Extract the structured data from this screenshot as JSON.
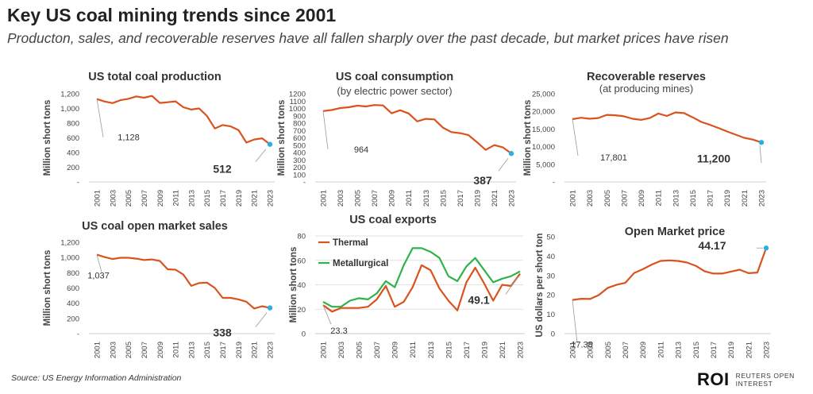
{
  "header": {
    "title": "Key US coal mining trends since 2001",
    "subtitle": "Producton, sales, and recoverable reserves have all fallen sharply over the past decade, but market prices have risen"
  },
  "footer": {
    "source": "Source: US Energy Information Administration",
    "logo_mark": "ROI",
    "logo_line1": "REUTERS OPEN",
    "logo_line2": "INTEREST"
  },
  "colors": {
    "line": "#d9531e",
    "line2": "#2db34a",
    "dot": "#2eaee0",
    "grid": "#d9d9d9"
  },
  "chart_data": [
    {
      "type": "line",
      "title": "US total coal production",
      "subtitle": "",
      "ylabel": "Million short tons",
      "ylim": [
        0,
        1200
      ],
      "yticks": [
        0,
        200,
        400,
        600,
        800,
        1000,
        1200
      ],
      "ytick_labels": [
        "-",
        "200",
        "400",
        "600",
        "800",
        "1,000",
        "1,200"
      ],
      "x": [
        2001,
        2002,
        2003,
        2004,
        2005,
        2006,
        2007,
        2008,
        2009,
        2010,
        2011,
        2012,
        2013,
        2014,
        2015,
        2016,
        2017,
        2018,
        2019,
        2020,
        2021,
        2022,
        2023
      ],
      "xtick_labels": [
        "2001",
        "2003",
        "2005",
        "2007",
        "2009",
        "2011",
        "2013",
        "2015",
        "2017",
        "2019",
        "2021",
        "2023"
      ],
      "series": [
        {
          "name": "Production",
          "values": [
            1128,
            1094,
            1072,
            1112,
            1131,
            1163,
            1146,
            1171,
            1075,
            1084,
            1096,
            1016,
            985,
            1000,
            897,
            728,
            774,
            756,
            706,
            535,
            577,
            594,
            512
          ]
        }
      ],
      "annotations": [
        {
          "text": "1,128",
          "x": 2001,
          "y": 1128,
          "bold": false
        },
        {
          "text": "512",
          "x": 2023,
          "y": 512,
          "bold": true
        }
      ]
    },
    {
      "type": "line",
      "title": "US coal consumption",
      "subtitle": "(by electric power sector)",
      "ylabel": "Million short tons",
      "ylim": [
        0,
        1200
      ],
      "yticks": [
        0,
        100,
        200,
        300,
        400,
        500,
        600,
        700,
        800,
        900,
        1000,
        1100,
        1200
      ],
      "ytick_labels": [
        "-",
        "100",
        "200",
        "300",
        "400",
        "500",
        "600",
        "700",
        "800",
        "900",
        "1000",
        "1100",
        "1200"
      ],
      "x": [
        2001,
        2002,
        2003,
        2004,
        2005,
        2006,
        2007,
        2008,
        2009,
        2010,
        2011,
        2012,
        2013,
        2014,
        2015,
        2016,
        2017,
        2018,
        2019,
        2020,
        2021,
        2022,
        2023
      ],
      "xtick_labels": [
        "2001",
        "2003",
        "2005",
        "2007",
        "2009",
        "2011",
        "2013",
        "2015",
        "2017",
        "2019",
        "2021",
        "2023"
      ],
      "series": [
        {
          "name": "Consumption",
          "values": [
            964,
            978,
            1005,
            1016,
            1038,
            1027,
            1047,
            1041,
            934,
            975,
            932,
            824,
            858,
            851,
            739,
            678,
            664,
            637,
            539,
            436,
            501,
            471,
            387
          ]
        }
      ],
      "annotations": [
        {
          "text": "964",
          "x": 2001,
          "y": 964,
          "bold": false
        },
        {
          "text": "387",
          "x": 2023,
          "y": 387,
          "bold": true
        }
      ]
    },
    {
      "type": "line",
      "title": "Recoverable reserves",
      "subtitle": "(at producing mines)",
      "ylabel": "Million short tons",
      "ylim": [
        0,
        25000
      ],
      "yticks": [
        0,
        5000,
        10000,
        15000,
        20000,
        25000
      ],
      "ytick_labels": [
        "-",
        "5,000",
        "10,000",
        "15,000",
        "20,000",
        "25,000"
      ],
      "x": [
        2001,
        2002,
        2003,
        2004,
        2005,
        2006,
        2007,
        2008,
        2009,
        2010,
        2011,
        2012,
        2013,
        2014,
        2015,
        2016,
        2017,
        2018,
        2019,
        2020,
        2021,
        2022,
        2023
      ],
      "xtick_labels": [
        "2001",
        "2003",
        "2005",
        "2007",
        "2009",
        "2011",
        "2013",
        "2015",
        "2017",
        "2019",
        "2021",
        "2023"
      ],
      "series": [
        {
          "name": "Reserves",
          "values": [
            17801,
            18200,
            17900,
            18100,
            19000,
            18900,
            18600,
            17900,
            17600,
            18100,
            19400,
            18700,
            19700,
            19500,
            18300,
            17000,
            16200,
            15300,
            14300,
            13400,
            12500,
            12000,
            11200
          ]
        }
      ],
      "annotations": [
        {
          "text": "17,801",
          "x": 2001,
          "y": 17801,
          "bold": false
        },
        {
          "text": "11,200",
          "x": 2023,
          "y": 11200,
          "bold": true
        }
      ]
    },
    {
      "type": "line",
      "title": "US coal open market sales",
      "subtitle": "",
      "ylabel": "Million short tons",
      "ylim": [
        0,
        1200
      ],
      "yticks": [
        0,
        200,
        400,
        600,
        800,
        1000,
        1200
      ],
      "ytick_labels": [
        "-",
        "200",
        "400",
        "600",
        "800",
        "1,000",
        "1,200"
      ],
      "x": [
        2001,
        2002,
        2003,
        2004,
        2005,
        2006,
        2007,
        2008,
        2009,
        2010,
        2011,
        2012,
        2013,
        2014,
        2015,
        2016,
        2017,
        2018,
        2019,
        2020,
        2021,
        2022,
        2023
      ],
      "xtick_labels": [
        "2001",
        "2003",
        "2005",
        "2007",
        "2009",
        "2011",
        "2013",
        "2015",
        "2017",
        "2019",
        "2021",
        "2023"
      ],
      "series": [
        {
          "name": "Sales",
          "values": [
            1037,
            1005,
            980,
            997,
            997,
            985,
            967,
            975,
            955,
            845,
            840,
            775,
            627,
            665,
            670,
            600,
            470,
            470,
            450,
            420,
            330,
            360,
            338
          ]
        }
      ],
      "annotations": [
        {
          "text": "1,037",
          "x": 2001,
          "y": 1037,
          "bold": false
        },
        {
          "text": "338",
          "x": 2023,
          "y": 338,
          "bold": true
        }
      ]
    },
    {
      "type": "line",
      "title": "US coal exports",
      "subtitle": "",
      "ylabel": "Million short tons",
      "ylim": [
        0,
        80
      ],
      "yticks": [
        0,
        20,
        40,
        60,
        80
      ],
      "ytick_labels": [
        "0",
        "20",
        "40",
        "60",
        "80"
      ],
      "x": [
        2001,
        2002,
        2003,
        2004,
        2005,
        2006,
        2007,
        2008,
        2009,
        2010,
        2011,
        2012,
        2013,
        2014,
        2015,
        2016,
        2017,
        2018,
        2019,
        2020,
        2021,
        2022,
        2023
      ],
      "xtick_labels": [
        "2001",
        "2003",
        "2005",
        "2007",
        "2009",
        "2011",
        "2013",
        "2015",
        "2017",
        "2019",
        "2021",
        "2023"
      ],
      "series": [
        {
          "name": "Thermal",
          "values": [
            23.3,
            18,
            21,
            21,
            21,
            22,
            28,
            39,
            22,
            26,
            38,
            56,
            52,
            37,
            27,
            19,
            42,
            54,
            41,
            27,
            40,
            39,
            49.1
          ]
        },
        {
          "name": "Metallurgical",
          "values": [
            26,
            22,
            22,
            27,
            29,
            28,
            33,
            43,
            38,
            56,
            70,
            70,
            67,
            62,
            47,
            43,
            55,
            62,
            52,
            42,
            45,
            47,
            51
          ]
        }
      ],
      "annotations": [
        {
          "text": "23.3",
          "x": 2001,
          "y": 23.3,
          "bold": false
        },
        {
          "text": "49.1",
          "x": 2023,
          "y": 49.1,
          "bold": true
        }
      ],
      "legend": [
        "Thermal",
        "Metallurgical"
      ]
    },
    {
      "type": "line",
      "title": "Open Market price",
      "subtitle": "",
      "ylabel": "US dollars per short ton",
      "ylim": [
        0,
        50
      ],
      "yticks": [
        0,
        10,
        20,
        30,
        40,
        50
      ],
      "ytick_labels": [
        "0",
        "10",
        "20",
        "30",
        "40",
        "50"
      ],
      "x": [
        2001,
        2002,
        2003,
        2004,
        2005,
        2006,
        2007,
        2008,
        2009,
        2010,
        2011,
        2012,
        2013,
        2014,
        2015,
        2016,
        2017,
        2018,
        2019,
        2020,
        2021,
        2022,
        2023
      ],
      "xtick_labels": [
        "2001",
        "2003",
        "2005",
        "2007",
        "2009",
        "2011",
        "2013",
        "2015",
        "2017",
        "2019",
        "2021",
        "2023"
      ],
      "series": [
        {
          "name": "Price",
          "values": [
            17.38,
            17.98,
            17.85,
            19.93,
            23.59,
            25.16,
            26.2,
            31.25,
            33.24,
            35.61,
            37.52,
            37.8,
            37.5,
            36.7,
            35,
            32.2,
            31,
            31,
            32,
            33,
            31.2,
            31.5,
            44.17
          ]
        }
      ],
      "annotations": [
        {
          "text": "17.38",
          "x": 2001,
          "y": 17.38,
          "bold": false
        },
        {
          "text": "44.17",
          "x": 2023,
          "y": 44.17,
          "bold": true
        }
      ]
    }
  ]
}
